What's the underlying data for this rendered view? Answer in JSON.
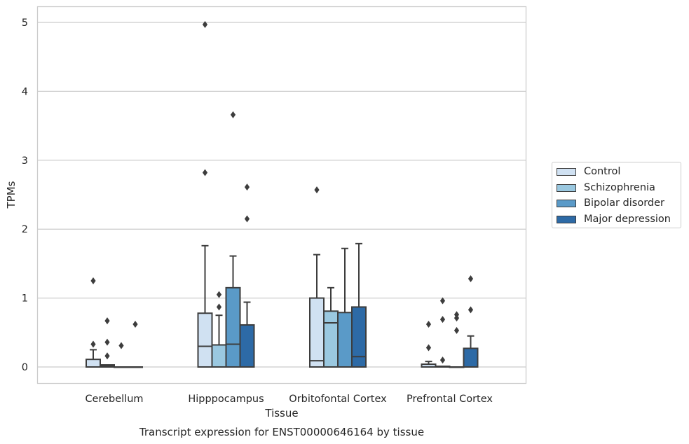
{
  "chart_data": {
    "type": "box",
    "title": "Transcript expression for ENST00000646164 by tissue",
    "xlabel": "Tissue",
    "ylabel": "TPMs",
    "ylim": [
      -0.24,
      5.24
    ],
    "yticks": [
      0,
      1,
      2,
      3,
      4,
      5
    ],
    "grid": "horizontal",
    "legend_position": "right",
    "categories": [
      "Cerebellum",
      "Hipppocampus",
      "Orbitofontal Cortex",
      "Prefrontal Cortex"
    ],
    "series": [
      {
        "name": "Control",
        "color": "#d0e1f2",
        "boxes": [
          {
            "low": 0.0,
            "q1": 0.0,
            "median": 0.0,
            "q3": 0.11,
            "high": 0.25,
            "outliers": [
              0.33,
              1.25
            ]
          },
          {
            "low": 0.0,
            "q1": 0.0,
            "median": 0.3,
            "q3": 0.78,
            "high": 1.76,
            "outliers": [
              2.82,
              4.97
            ]
          },
          {
            "low": 0.0,
            "q1": 0.0,
            "median": 0.09,
            "q3": 1.0,
            "high": 1.63,
            "outliers": [
              2.57
            ]
          },
          {
            "low": 0.0,
            "q1": 0.0,
            "median": 0.0,
            "q3": 0.04,
            "high": 0.08,
            "outliers": [
              0.28,
              0.62
            ]
          }
        ]
      },
      {
        "name": "Schizophrenia",
        "color": "#9ac8e0",
        "boxes": [
          {
            "low": 0.0,
            "q1": 0.0,
            "median": 0.01,
            "q3": 0.03,
            "high": 0.03,
            "outliers": [
              0.16,
              0.36,
              0.67
            ]
          },
          {
            "low": 0.0,
            "q1": 0.0,
            "median": 0.0,
            "q3": 0.32,
            "high": 0.75,
            "outliers": [
              0.87,
              1.05
            ]
          },
          {
            "low": 0.0,
            "q1": 0.0,
            "median": 0.64,
            "q3": 0.81,
            "high": 1.15,
            "outliers": []
          },
          {
            "low": 0.0,
            "q1": 0.0,
            "median": 0.0,
            "q3": 0.01,
            "high": 0.01,
            "outliers": [
              0.1,
              0.69,
              0.96
            ]
          }
        ]
      },
      {
        "name": "Bipolar disorder",
        "color": "#5a9ac8",
        "boxes": [
          {
            "low": 0.0,
            "q1": 0.0,
            "median": 0.0,
            "q3": 0.0,
            "high": 0.0,
            "outliers": [
              0.31
            ]
          },
          {
            "low": 0.0,
            "q1": 0.0,
            "median": 0.33,
            "q3": 1.15,
            "high": 1.61,
            "outliers": [
              3.66
            ]
          },
          {
            "low": 0.0,
            "q1": 0.0,
            "median": 0.0,
            "q3": 0.79,
            "high": 1.72,
            "outliers": []
          },
          {
            "low": 0.0,
            "q1": 0.0,
            "median": 0.0,
            "q3": 0.0,
            "high": 0.0,
            "outliers": [
              0.53,
              0.71,
              0.76
            ]
          }
        ]
      },
      {
        "name": "Major depression",
        "color": "#2d6aa6",
        "boxes": [
          {
            "low": 0.0,
            "q1": 0.0,
            "median": 0.0,
            "q3": 0.0,
            "high": 0.0,
            "outliers": [
              0.62
            ]
          },
          {
            "low": 0.0,
            "q1": 0.0,
            "median": 0.0,
            "q3": 0.61,
            "high": 0.94,
            "outliers": [
              2.15,
              2.61
            ]
          },
          {
            "low": 0.0,
            "q1": 0.0,
            "median": 0.15,
            "q3": 0.87,
            "high": 1.79,
            "outliers": []
          },
          {
            "low": 0.0,
            "q1": 0.0,
            "median": 0.0,
            "q3": 0.27,
            "high": 0.45,
            "outliers": [
              0.83,
              1.28
            ]
          }
        ]
      }
    ]
  }
}
